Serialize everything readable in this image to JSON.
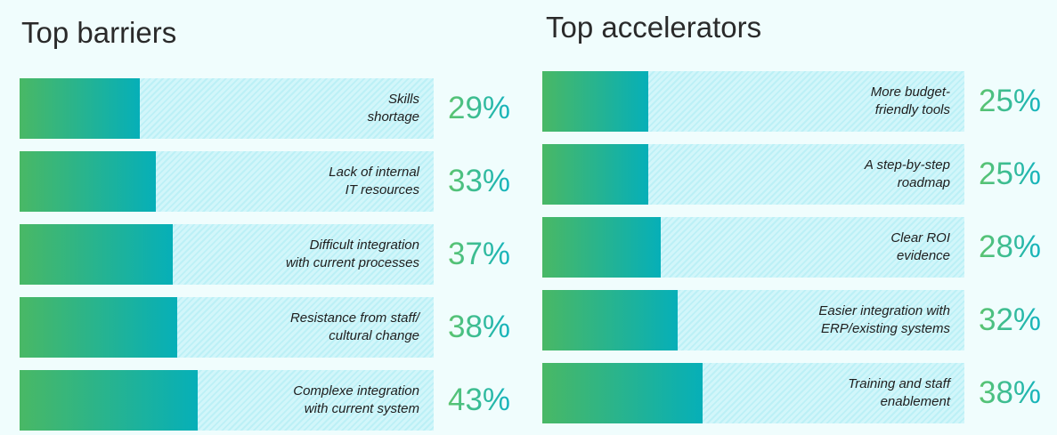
{
  "chart_data": [
    {
      "type": "bar",
      "orientation": "horizontal",
      "title": "Top barriers",
      "unit": "%",
      "xlim": [
        0,
        100
      ],
      "grid": false,
      "colors": {
        "fill_start": "#49b865",
        "fill_end": "#06afb8",
        "track": "#c8f3f8"
      },
      "categories": [
        "Skills\nshortage",
        "Lack of internal\nIT resources",
        "Difficult integration\nwith current processes",
        "Resistance from staff/\ncultural change",
        "Complexe integration\nwith current system"
      ],
      "values": [
        29,
        33,
        37,
        38,
        43
      ],
      "value_labels": [
        "29%",
        "33%",
        "37%",
        "38%",
        "43%"
      ]
    },
    {
      "type": "bar",
      "orientation": "horizontal",
      "title": "Top accelerators",
      "unit": "%",
      "xlim": [
        0,
        100
      ],
      "grid": false,
      "colors": {
        "fill_start": "#49b865",
        "fill_end": "#06afb8",
        "track": "#c8f3f8"
      },
      "categories": [
        "More budget-\nfriendly tools",
        "A step-by-step\nroadmap",
        "Clear ROI\nevidence",
        "Easier integration with\nERP/existing systems",
        "Training and staff\nenablement"
      ],
      "values": [
        25,
        25,
        28,
        32,
        38
      ],
      "value_labels": [
        "25%",
        "25%",
        "28%",
        "32%",
        "38%"
      ]
    }
  ]
}
